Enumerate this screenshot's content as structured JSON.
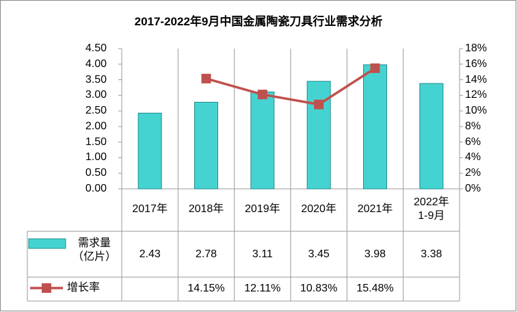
{
  "chart_data": {
    "type": "bar-line",
    "title": "2017-2022年9月中国金属陶瓷刀具行业需求分析",
    "categories": [
      "2017年",
      "2018年",
      "2019年",
      "2020年",
      "2021年",
      "2022年\n1-9月"
    ],
    "series": [
      {
        "name": "需求量\n（亿片）",
        "type": "bar",
        "color": "#45d3d1",
        "values": [
          2.43,
          2.78,
          3.11,
          3.45,
          3.98,
          3.38
        ]
      },
      {
        "name": "增长率",
        "type": "line",
        "axis": "y2",
        "color": "#c0504d",
        "values": [
          null,
          14.15,
          12.11,
          10.83,
          15.48,
          null
        ],
        "value_labels": [
          null,
          "14.15%",
          "12.11%",
          "10.83%",
          "15.48%",
          null
        ]
      }
    ],
    "ylim": [
      0,
      4.5
    ],
    "yticks": [
      {
        "value": 0,
        "label": "0.00"
      },
      {
        "value": 0.5,
        "label": "0.50"
      },
      {
        "value": 1,
        "label": "1.00"
      },
      {
        "value": 1.5,
        "label": "1.50"
      },
      {
        "value": 2,
        "label": "2.00"
      },
      {
        "value": 2.5,
        "label": "2.50"
      },
      {
        "value": 3,
        "label": "3.00"
      },
      {
        "value": 3.5,
        "label": "3.50"
      },
      {
        "value": 4,
        "label": "4.00"
      },
      {
        "value": 4.5,
        "label": "4.50"
      }
    ],
    "y2lim": [
      0,
      18
    ],
    "y2ticks": [
      {
        "value": 0,
        "label": "0%"
      },
      {
        "value": 2,
        "label": "2%"
      },
      {
        "value": 4,
        "label": "4%"
      },
      {
        "value": 6,
        "label": "6%"
      },
      {
        "value": 8,
        "label": "8%"
      },
      {
        "value": 10,
        "label": "10%"
      },
      {
        "value": 12,
        "label": "12%"
      },
      {
        "value": 14,
        "label": "14%"
      },
      {
        "value": 16,
        "label": "16%"
      },
      {
        "value": 18,
        "label": "18%"
      }
    ]
  }
}
